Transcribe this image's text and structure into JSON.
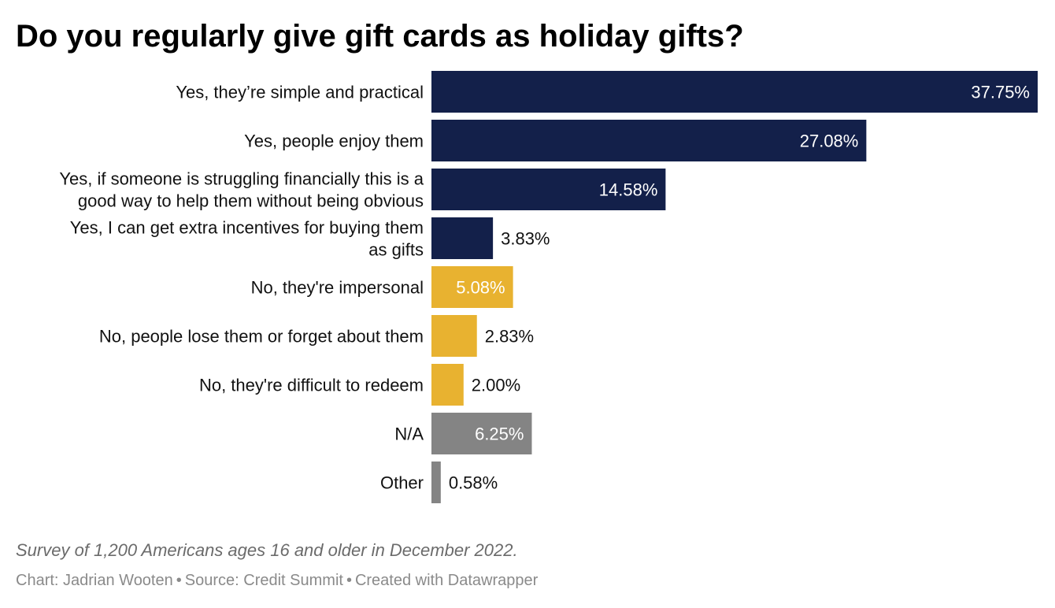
{
  "chart_data": {
    "type": "bar",
    "orientation": "horizontal",
    "title": "Do you regularly give gift cards as holiday gifts?",
    "categories": [
      [
        "Yes, they’re simple and practical"
      ],
      [
        "Yes, people enjoy them"
      ],
      [
        "Yes, if someone is struggling financially this is a",
        "good way to help them without being obvious"
      ],
      [
        "Yes, I can get extra incentives for buying them",
        "as gifts"
      ],
      [
        "No, they're impersonal"
      ],
      [
        "No, people lose them or forget about them"
      ],
      [
        "No, they're difficult to redeem"
      ],
      [
        "N/A"
      ],
      [
        "Other"
      ]
    ],
    "values": [
      37.75,
      27.08,
      14.58,
      3.83,
      5.08,
      2.83,
      2.0,
      6.25,
      0.58
    ],
    "value_labels": [
      "37.75%",
      "27.08%",
      "14.58%",
      "3.83%",
      "5.08%",
      "2.83%",
      "2.00%",
      "6.25%",
      "0.58%"
    ],
    "bar_groups": [
      "yes",
      "yes",
      "yes",
      "yes",
      "no",
      "no",
      "no",
      "na",
      "na"
    ],
    "xlim": [
      0,
      37.75
    ],
    "grid": false,
    "legend": "none"
  },
  "colors": {
    "yes": "#13204a",
    "no": "#e8b230",
    "na": "#848484",
    "label_inside": "#ffffff",
    "label_outside": "#111111",
    "category_text": "#111111"
  },
  "notes": "Survey of 1,200 Americans ages 16 and older in December 2022.",
  "footer": {
    "chart_credit": "Chart: Jadrian Wooten",
    "source": "Source: Credit Summit",
    "created_with": "Created with Datawrapper",
    "separator": "•"
  }
}
